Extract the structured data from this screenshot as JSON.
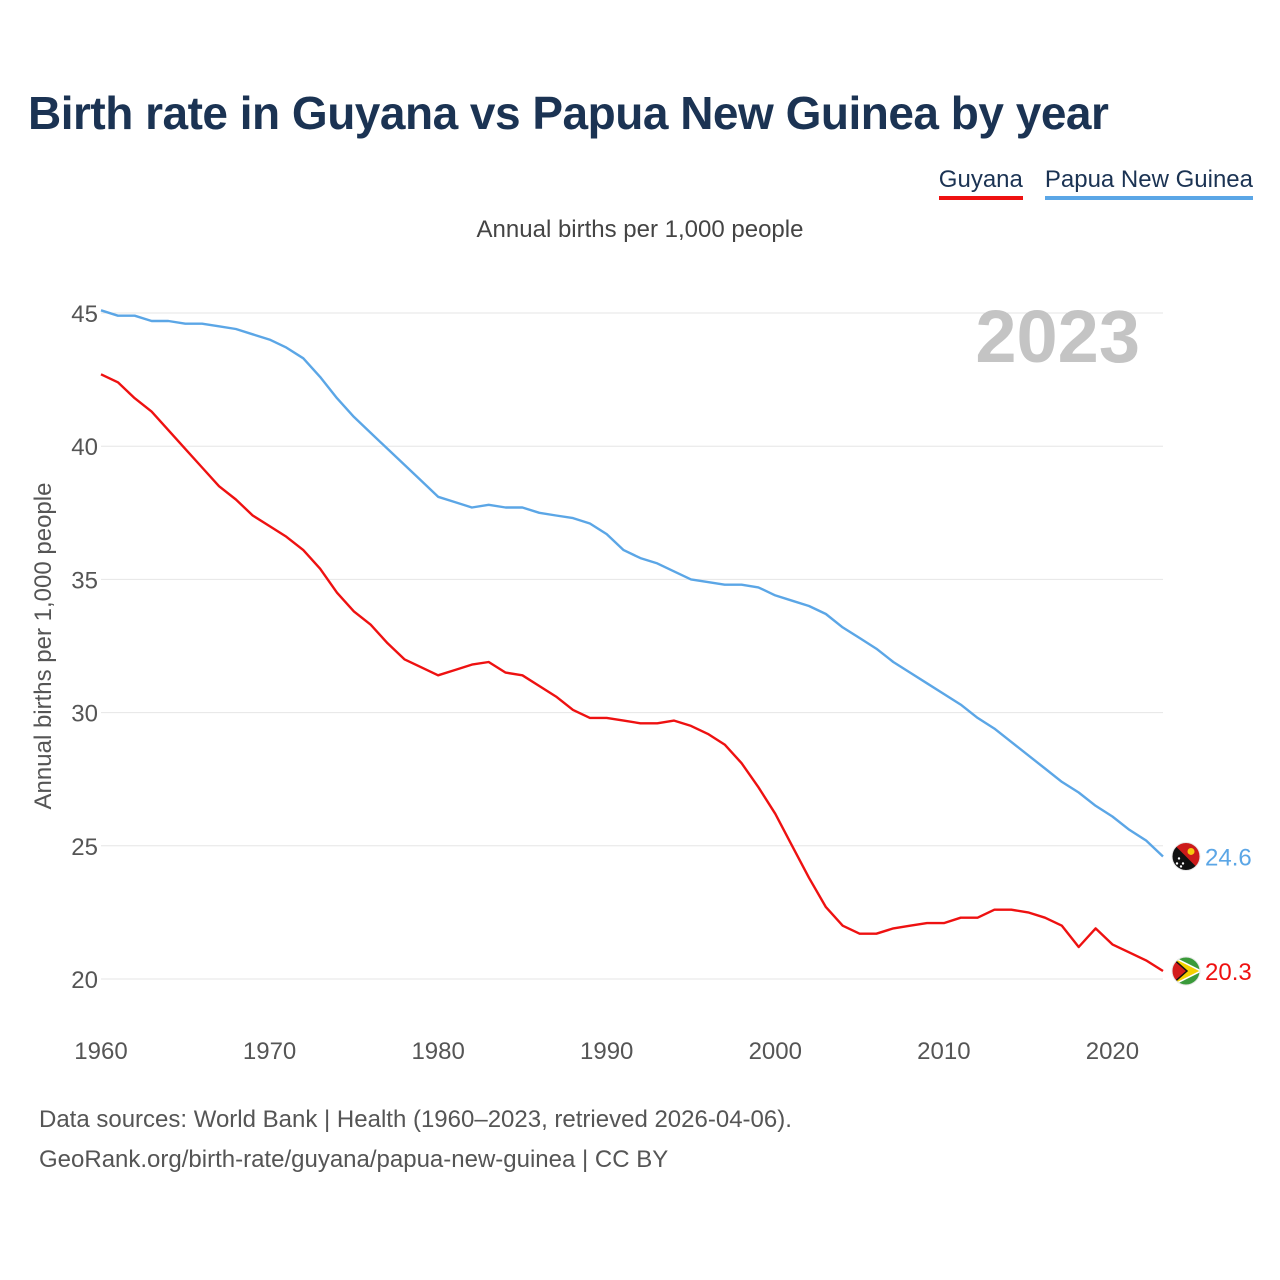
{
  "title": "Birth rate in Guyana vs Papua New Guinea by year",
  "subtitle": "Annual births per 1,000 people",
  "footer": {
    "sources": "Data sources: World Bank | Health (1960–2023, retrieved 2026-04-06).",
    "url": "GeoRank.org/birth-rate/guyana/papua-new-guinea | CC BY"
  },
  "chart_data": {
    "type": "line",
    "title": "Birth rate in Guyana vs Papua New Guinea by year",
    "ylabel": "Annual births per 1,000 people",
    "xlabel": "",
    "year_label": "2023",
    "xlim": [
      1960,
      2023
    ],
    "ylim": [
      18,
      46
    ],
    "x_ticks": [
      1960,
      1970,
      1980,
      1990,
      2000,
      2010,
      2020
    ],
    "y_ticks": [
      20,
      25,
      30,
      35,
      40,
      45
    ],
    "grid": true,
    "legend_position": "top-right",
    "x": [
      1960,
      1961,
      1962,
      1963,
      1964,
      1965,
      1966,
      1967,
      1968,
      1969,
      1970,
      1971,
      1972,
      1973,
      1974,
      1975,
      1976,
      1977,
      1978,
      1979,
      1980,
      1981,
      1982,
      1983,
      1984,
      1985,
      1986,
      1987,
      1988,
      1989,
      1990,
      1991,
      1992,
      1993,
      1994,
      1995,
      1996,
      1997,
      1998,
      1999,
      2000,
      2001,
      2002,
      2003,
      2004,
      2005,
      2006,
      2007,
      2008,
      2009,
      2010,
      2011,
      2012,
      2013,
      2014,
      2015,
      2016,
      2017,
      2018,
      2019,
      2020,
      2021,
      2022,
      2023
    ],
    "series": [
      {
        "name": "Guyana",
        "color": "#ee1111",
        "end_label": "20.3",
        "values": [
          42.7,
          42.4,
          41.8,
          41.3,
          40.6,
          39.9,
          39.2,
          38.5,
          38.0,
          37.4,
          37.0,
          36.6,
          36.1,
          35.4,
          34.5,
          33.8,
          33.3,
          32.6,
          32.0,
          31.7,
          31.4,
          31.6,
          31.8,
          31.9,
          31.5,
          31.4,
          31.0,
          30.6,
          30.1,
          29.8,
          29.8,
          29.7,
          29.6,
          29.6,
          29.7,
          29.5,
          29.2,
          28.8,
          28.1,
          27.2,
          26.2,
          25.0,
          23.8,
          22.7,
          22.0,
          21.7,
          21.7,
          21.9,
          22.0,
          22.1,
          22.1,
          22.3,
          22.3,
          22.6,
          22.6,
          22.5,
          22.3,
          22.0,
          21.2,
          21.9,
          21.3,
          21.0,
          20.7,
          20.3
        ]
      },
      {
        "name": "Papua New Guinea",
        "color": "#5ba6e6",
        "end_label": "24.6",
        "values": [
          45.1,
          44.9,
          44.9,
          44.7,
          44.7,
          44.6,
          44.6,
          44.5,
          44.4,
          44.2,
          44.0,
          43.7,
          43.3,
          42.6,
          41.8,
          41.1,
          40.5,
          39.9,
          39.3,
          38.7,
          38.1,
          37.9,
          37.7,
          37.8,
          37.7,
          37.7,
          37.5,
          37.4,
          37.3,
          37.1,
          36.7,
          36.1,
          35.8,
          35.6,
          35.3,
          35.0,
          34.9,
          34.8,
          34.8,
          34.7,
          34.4,
          34.2,
          34.0,
          33.7,
          33.2,
          32.8,
          32.4,
          31.9,
          31.5,
          31.1,
          30.7,
          30.3,
          29.8,
          29.4,
          28.9,
          28.4,
          27.9,
          27.4,
          27.0,
          26.5,
          26.1,
          25.6,
          25.2,
          24.6
        ]
      }
    ]
  }
}
